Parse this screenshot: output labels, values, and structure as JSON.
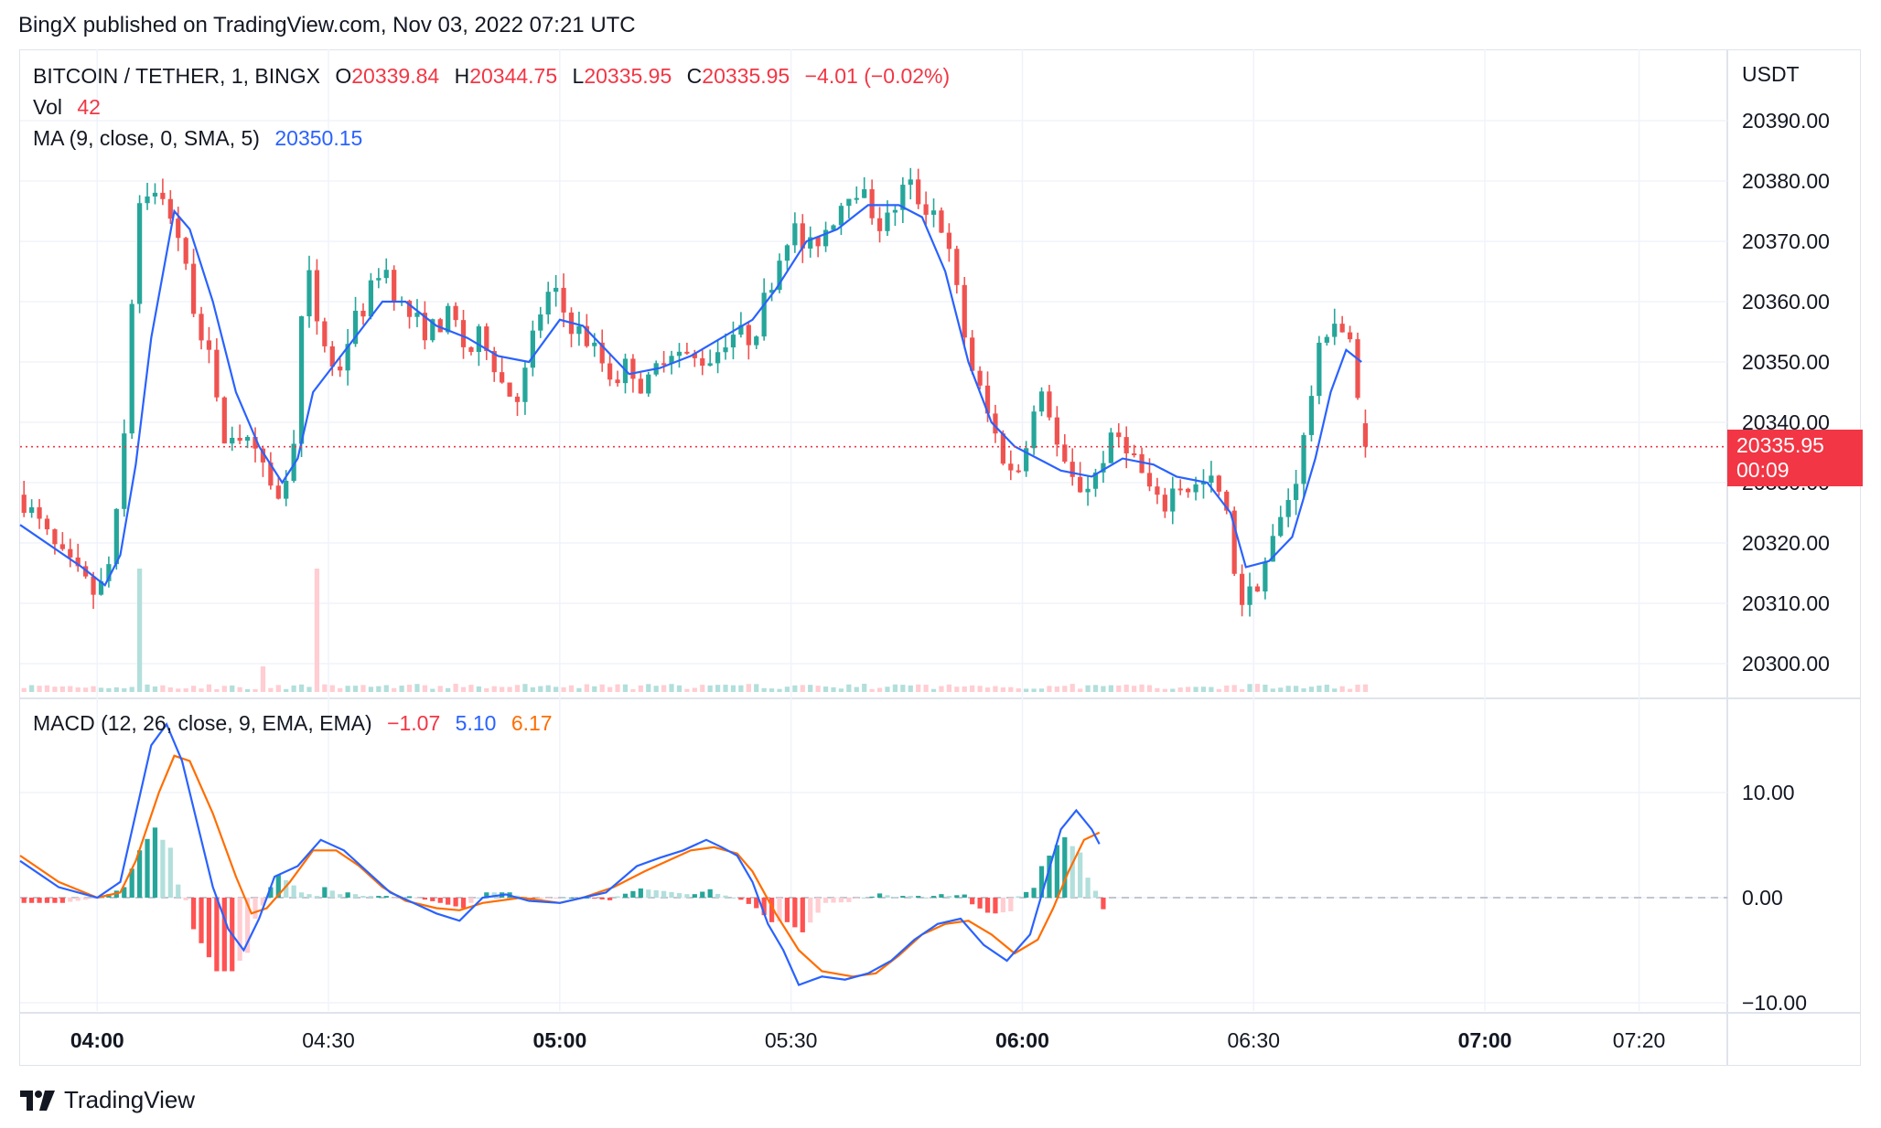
{
  "header": {
    "publisher_line": "BingX published on TradingView.com, Nov 03, 2022 07:21 UTC"
  },
  "legend": {
    "symbol": "BITCOIN / TETHER, 1, BINGX",
    "open_label": "O",
    "open": "20339.84",
    "high_label": "H",
    "high": "20344.75",
    "low_label": "L",
    "low": "20335.95",
    "close_label": "C",
    "close": "20335.95",
    "change": "−4.01 (−0.02%)",
    "vol_label": "Vol",
    "vol_value": "42",
    "ma_label": "MA (9, close, 0, SMA, 5)",
    "ma_value": "20350.15",
    "macd_label": "MACD (12, 26, close, 9, EMA, EMA)",
    "macd_hist": "−1.07",
    "macd_line": "5.10",
    "macd_signal": "6.17"
  },
  "price_axis": {
    "unit": "USDT"
  },
  "last_price": {
    "price": "20335.95",
    "countdown": "00:09"
  },
  "footer": {
    "brand": "TradingView"
  },
  "colors": {
    "up": "#26a69a",
    "down": "#ef5350",
    "ma": "#2962ff",
    "macd": "#2962ff",
    "signal": "#ff6d00",
    "hist_up_strong": "#26a69a",
    "hist_up_weak": "#b2dfdb",
    "hist_down_strong": "#ff5252",
    "hist_down_weak": "#ffcdd2",
    "vol_up": "#b2dfdb",
    "vol_down": "#ffcdd2"
  },
  "chart_data": [
    {
      "type": "candlestick",
      "title": "BITCOIN / TETHER, 1, BINGX",
      "ylabel": "USDT",
      "ylim": [
        20295,
        20400
      ],
      "yticks": [
        "20300.00",
        "20310.00",
        "20320.00",
        "20330.00",
        "20340.00",
        "20350.00",
        "20360.00",
        "20370.00",
        "20380.00",
        "20390.00"
      ],
      "xticks": [
        "04:00",
        "04:30",
        "05:00",
        "05:30",
        "06:00",
        "06:30",
        "07:00",
        "07:20"
      ],
      "xticks_bold": [
        "04:00",
        "05:00",
        "06:00",
        "07:00"
      ],
      "x_start": "03:50",
      "x_end": "07:21",
      "price_key_points": [
        [
          "03:50",
          20328
        ],
        [
          "03:55",
          20318
        ],
        [
          "04:00",
          20311
        ],
        [
          "04:02",
          20318
        ],
        [
          "04:03",
          20330
        ],
        [
          "04:04",
          20345
        ],
        [
          "04:05",
          20375
        ],
        [
          "04:06",
          20379
        ],
        [
          "04:08",
          20377
        ],
        [
          "04:10",
          20374
        ],
        [
          "04:12",
          20362
        ],
        [
          "04:15",
          20348
        ],
        [
          "04:16",
          20337
        ],
        [
          "04:18",
          20339
        ],
        [
          "04:21",
          20333
        ],
        [
          "04:23",
          20328
        ],
        [
          "04:25",
          20330
        ],
        [
          "04:26",
          20346
        ],
        [
          "04:27",
          20366
        ],
        [
          "04:29",
          20355
        ],
        [
          "04:31",
          20347
        ],
        [
          "04:33",
          20356
        ],
        [
          "04:35",
          20360
        ],
        [
          "04:37",
          20367
        ],
        [
          "04:39",
          20360
        ],
        [
          "04:41",
          20357
        ],
        [
          "04:43",
          20355
        ],
        [
          "04:46",
          20358
        ],
        [
          "04:48",
          20351
        ],
        [
          "04:50",
          20355
        ],
        [
          "04:53",
          20345
        ],
        [
          "04:55",
          20345
        ],
        [
          "04:57",
          20357
        ],
        [
          "04:59",
          20362
        ],
        [
          "05:01",
          20357
        ],
        [
          "05:04",
          20353
        ],
        [
          "05:07",
          20347
        ],
        [
          "05:09",
          20350
        ],
        [
          "05:11",
          20345
        ],
        [
          "05:14",
          20353
        ],
        [
          "05:17",
          20350
        ],
        [
          "05:20",
          20351
        ],
        [
          "05:22",
          20355
        ],
        [
          "05:25",
          20354
        ],
        [
          "05:27",
          20362
        ],
        [
          "05:30",
          20373
        ],
        [
          "05:32",
          20368
        ],
        [
          "05:35",
          20373
        ],
        [
          "05:38",
          20380
        ],
        [
          "05:40",
          20376
        ],
        [
          "05:42",
          20372
        ],
        [
          "05:45",
          20380
        ],
        [
          "05:47",
          20376
        ],
        [
          "05:49",
          20375
        ],
        [
          "05:51",
          20365
        ],
        [
          "05:53",
          20351
        ],
        [
          "05:55",
          20343
        ],
        [
          "05:57",
          20336
        ],
        [
          "05:59",
          20330
        ],
        [
          "06:01",
          20340
        ],
        [
          "06:03",
          20345
        ],
        [
          "06:05",
          20333
        ],
        [
          "06:07",
          20329
        ],
        [
          "06:09",
          20330
        ],
        [
          "06:11",
          20336
        ],
        [
          "06:13",
          20338
        ],
        [
          "06:16",
          20330
        ],
        [
          "06:18",
          20325
        ],
        [
          "06:20",
          20330
        ],
        [
          "06:22",
          20329
        ],
        [
          "06:25",
          20330
        ],
        [
          "06:27",
          20322
        ],
        [
          "06:28",
          20310
        ],
        [
          "06:30",
          20312
        ],
        [
          "06:33",
          20322
        ],
        [
          "06:36",
          20333
        ],
        [
          "06:38",
          20349
        ],
        [
          "06:40",
          20358
        ],
        [
          "06:42",
          20354
        ],
        [
          "06:43",
          20351
        ],
        [
          "06:44",
          20336
        ]
      ],
      "ma_key_points": [
        [
          "03:50",
          20323
        ],
        [
          "03:58",
          20316
        ],
        [
          "04:01",
          20313
        ],
        [
          "04:03",
          20318
        ],
        [
          "04:05",
          20333
        ],
        [
          "04:07",
          20354
        ],
        [
          "04:09",
          20368
        ],
        [
          "04:10",
          20375
        ],
        [
          "04:12",
          20372
        ],
        [
          "04:15",
          20360
        ],
        [
          "04:18",
          20345
        ],
        [
          "04:21",
          20336
        ],
        [
          "04:24",
          20330
        ],
        [
          "04:26",
          20334
        ],
        [
          "04:28",
          20345
        ],
        [
          "04:31",
          20350
        ],
        [
          "04:34",
          20355
        ],
        [
          "04:37",
          20360
        ],
        [
          "04:40",
          20360
        ],
        [
          "04:44",
          20356
        ],
        [
          "04:48",
          20354
        ],
        [
          "04:52",
          20351
        ],
        [
          "04:56",
          20350
        ],
        [
          "05:00",
          20357
        ],
        [
          "05:03",
          20356
        ],
        [
          "05:06",
          20352
        ],
        [
          "05:09",
          20348
        ],
        [
          "05:13",
          20349
        ],
        [
          "05:17",
          20351
        ],
        [
          "05:21",
          20354
        ],
        [
          "05:25",
          20357
        ],
        [
          "05:28",
          20362
        ],
        [
          "05:32",
          20370
        ],
        [
          "05:36",
          20372
        ],
        [
          "05:40",
          20376
        ],
        [
          "05:44",
          20376
        ],
        [
          "05:47",
          20374
        ],
        [
          "05:50",
          20365
        ],
        [
          "05:53",
          20350
        ],
        [
          "05:56",
          20340
        ],
        [
          "05:59",
          20336
        ],
        [
          "06:02",
          20334
        ],
        [
          "06:05",
          20332
        ],
        [
          "06:09",
          20331
        ],
        [
          "06:13",
          20334
        ],
        [
          "06:17",
          20333
        ],
        [
          "06:20",
          20331
        ],
        [
          "06:24",
          20330
        ],
        [
          "06:27",
          20325
        ],
        [
          "06:29",
          20316
        ],
        [
          "06:32",
          20317
        ],
        [
          "06:35",
          20321
        ],
        [
          "06:38",
          20334
        ],
        [
          "06:40",
          20345
        ],
        [
          "06:42",
          20352
        ],
        [
          "06:44",
          20350
        ]
      ],
      "last_price": 20335.95
    },
    {
      "type": "line",
      "title": "MACD (12, 26, close, 9, EMA, EMA)",
      "ylim": [
        -10,
        15
      ],
      "yticks": [
        "10.00",
        "0.00",
        "−10.00"
      ],
      "series": [
        {
          "name": "MACD",
          "key_points": [
            [
              "03:50",
              3.5
            ],
            [
              "03:55",
              1.0
            ],
            [
              "04:00",
              0.0
            ],
            [
              "04:03",
              1.5
            ],
            [
              "04:05",
              8.0
            ],
            [
              "04:07",
              14.5
            ],
            [
              "04:09",
              16.5
            ],
            [
              "04:11",
              13.0
            ],
            [
              "04:13",
              7.0
            ],
            [
              "04:15",
              1.0
            ],
            [
              "04:17",
              -3.0
            ],
            [
              "04:19",
              -5.0
            ],
            [
              "04:21",
              -2.0
            ],
            [
              "04:23",
              2.0
            ],
            [
              "04:26",
              3.0
            ],
            [
              "04:29",
              5.5
            ],
            [
              "04:32",
              4.5
            ],
            [
              "04:35",
              2.5
            ],
            [
              "04:38",
              0.5
            ],
            [
              "04:41",
              -0.5
            ],
            [
              "04:44",
              -1.5
            ],
            [
              "04:47",
              -2.2
            ],
            [
              "04:50",
              0.0
            ],
            [
              "04:53",
              0.3
            ],
            [
              "04:56",
              -0.3
            ],
            [
              "05:00",
              -0.5
            ],
            [
              "05:03",
              0.0
            ],
            [
              "05:06",
              0.5
            ],
            [
              "05:10",
              3.0
            ],
            [
              "05:13",
              3.8
            ],
            [
              "05:16",
              4.5
            ],
            [
              "05:19",
              5.5
            ],
            [
              "05:21",
              4.8
            ],
            [
              "05:23",
              4.0
            ],
            [
              "05:25",
              1.5
            ],
            [
              "05:27",
              -2.5
            ],
            [
              "05:29",
              -5.0
            ],
            [
              "05:31",
              -8.3
            ],
            [
              "05:34",
              -7.5
            ],
            [
              "05:37",
              -7.8
            ],
            [
              "05:40",
              -7.2
            ],
            [
              "05:43",
              -6.0
            ],
            [
              "05:46",
              -4.0
            ],
            [
              "05:49",
              -2.5
            ],
            [
              "05:52",
              -2.0
            ],
            [
              "05:55",
              -4.5
            ],
            [
              "05:58",
              -6.0
            ],
            [
              "06:01",
              -3.5
            ],
            [
              "06:03",
              1.5
            ],
            [
              "06:05",
              6.5
            ],
            [
              "06:07",
              8.3
            ],
            [
              "06:09",
              6.5
            ],
            [
              "06:10",
              5.1
            ]
          ]
        },
        {
          "name": "Signal",
          "key_points": [
            [
              "03:50",
              4.0
            ],
            [
              "03:55",
              1.5
            ],
            [
              "04:00",
              0.0
            ],
            [
              "04:03",
              0.5
            ],
            [
              "04:05",
              3.5
            ],
            [
              "04:08",
              10.0
            ],
            [
              "04:10",
              13.5
            ],
            [
              "04:12",
              13.0
            ],
            [
              "04:15",
              8.0
            ],
            [
              "04:18",
              2.0
            ],
            [
              "04:20",
              -1.5
            ],
            [
              "04:22",
              -1.0
            ],
            [
              "04:25",
              1.5
            ],
            [
              "04:28",
              4.5
            ],
            [
              "04:31",
              4.5
            ],
            [
              "04:34",
              3.0
            ],
            [
              "04:37",
              1.0
            ],
            [
              "04:40",
              -0.3
            ],
            [
              "04:44",
              -1.0
            ],
            [
              "04:47",
              -1.2
            ],
            [
              "04:50",
              -0.5
            ],
            [
              "04:55",
              0.0
            ],
            [
              "05:00",
              -0.5
            ],
            [
              "05:03",
              0.0
            ],
            [
              "05:07",
              1.0
            ],
            [
              "05:11",
              2.5
            ],
            [
              "05:14",
              3.5
            ],
            [
              "05:17",
              4.5
            ],
            [
              "05:20",
              4.8
            ],
            [
              "05:23",
              4.2
            ],
            [
              "05:25",
              2.5
            ],
            [
              "05:28",
              -1.5
            ],
            [
              "05:31",
              -5.0
            ],
            [
              "05:34",
              -7.0
            ],
            [
              "05:38",
              -7.5
            ],
            [
              "05:41",
              -7.2
            ],
            [
              "05:44",
              -5.5
            ],
            [
              "05:47",
              -3.5
            ],
            [
              "05:50",
              -2.5
            ],
            [
              "05:53",
              -2.2
            ],
            [
              "05:56",
              -3.5
            ],
            [
              "05:59",
              -5.3
            ],
            [
              "06:02",
              -4.0
            ],
            [
              "06:04",
              -1.0
            ],
            [
              "06:06",
              2.5
            ],
            [
              "06:08",
              5.5
            ],
            [
              "06:10",
              6.2
            ]
          ]
        }
      ]
    }
  ]
}
